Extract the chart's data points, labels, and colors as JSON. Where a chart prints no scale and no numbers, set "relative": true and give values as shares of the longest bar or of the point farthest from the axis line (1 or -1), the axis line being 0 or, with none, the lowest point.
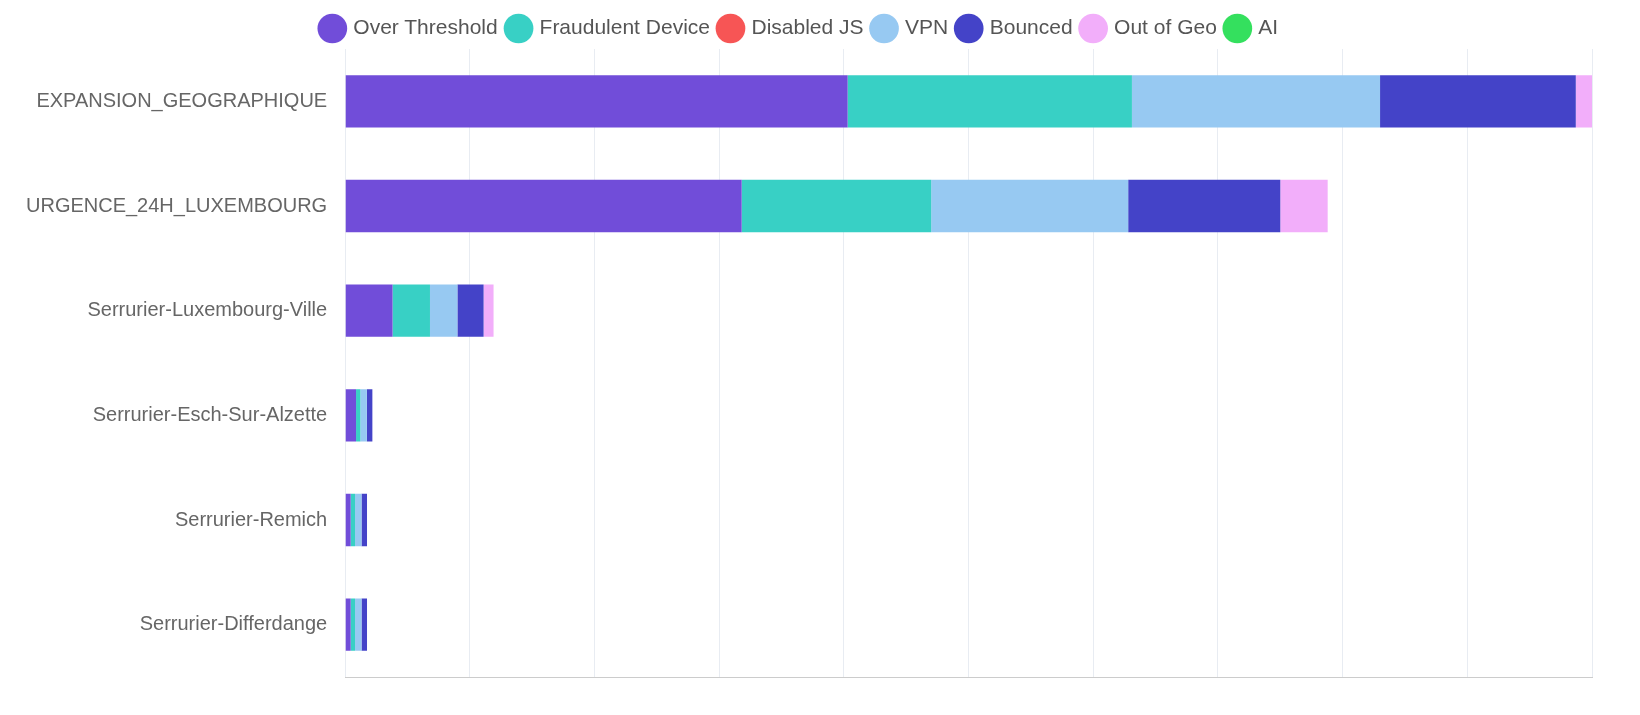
{
  "chart_data": {
    "type": "bar",
    "orientation": "horizontal",
    "stacked": true,
    "relative": true,
    "grid": "x",
    "legend": "top",
    "categories": [
      "EXPANSION_GEOGRAPHIQUE",
      "URGENCE_24H_LUXEMBOURG",
      "Serrurier-Luxembourg-Ville",
      "Serrurier-Esch-Sur-Alzette",
      "Serrurier-Remich",
      "Serrurier-Differdange"
    ],
    "series": [
      {
        "name": "Over Threshold",
        "color": "#714dd9",
        "values": [
          0.403,
          0.318,
          0.038,
          0.0087,
          0.0044,
          0.0044
        ]
      },
      {
        "name": "Fraudulent Device",
        "color": "#38d0c5",
        "values": [
          0.228,
          0.152,
          0.03,
          0.0035,
          0.0035,
          0.0035
        ]
      },
      {
        "name": "Disabled JS",
        "color": "#f75555",
        "values": [
          0,
          0,
          0,
          0,
          0,
          0
        ]
      },
      {
        "name": "VPN",
        "color": "#97c9f2",
        "values": [
          0.199,
          0.158,
          0.022,
          0.0052,
          0.0052,
          0.0052
        ]
      },
      {
        "name": "Bounced",
        "color": "#4443c8",
        "values": [
          0.157,
          0.122,
          0.021,
          0.0044,
          0.0044,
          0.0044
        ]
      },
      {
        "name": "Out of Geo",
        "color": "#f2aefa",
        "values": [
          0.013,
          0.038,
          0.008,
          0,
          0,
          0
        ]
      },
      {
        "name": "AI",
        "color": "#34e05e",
        "values": [
          0,
          0,
          0,
          0,
          0,
          0
        ]
      }
    ]
  }
}
